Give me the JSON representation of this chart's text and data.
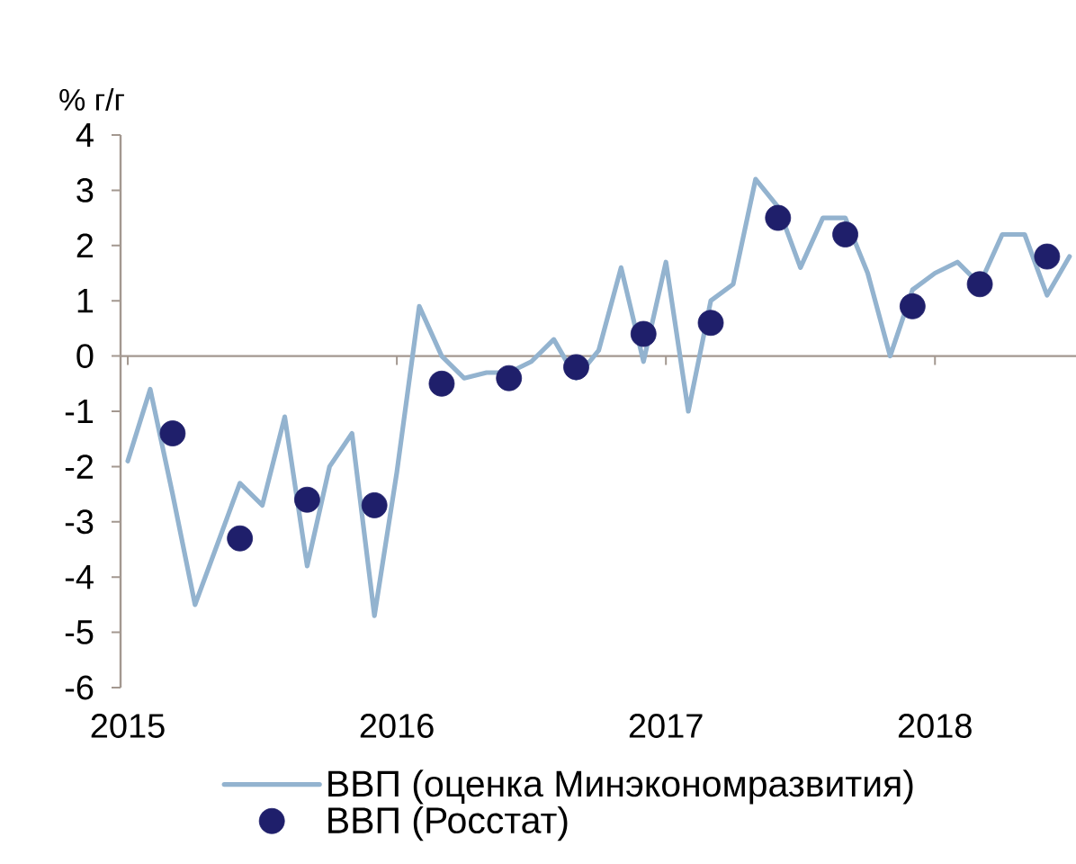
{
  "chart_data": {
    "type": "line",
    "ylabel": "% г/г",
    "xlim": [
      "2014-12-22",
      "2018-07-10"
    ],
    "ylim": [
      -6,
      4
    ],
    "xticks": [
      {
        "value": "2015-01",
        "label": "2015"
      },
      {
        "value": "2016-01",
        "label": "2016"
      },
      {
        "value": "2017-01",
        "label": "2017"
      },
      {
        "value": "2018-01",
        "label": "2018"
      }
    ],
    "yticks": [
      -6,
      -5,
      -4,
      -3,
      -2,
      -1,
      0,
      1,
      2,
      3,
      4
    ],
    "legend": "bottom",
    "series": [
      {
        "name": "ВВП (оценка Минэкономразвития)",
        "type": "line",
        "color": "#93b3cf",
        "x": [
          "2015-01",
          "2015-02",
          "2015-03",
          "2015-04",
          "2015-05",
          "2015-06",
          "2015-07",
          "2015-08",
          "2015-09",
          "2015-10",
          "2015-11",
          "2015-12",
          "2016-01",
          "2016-02",
          "2016-03",
          "2016-04",
          "2016-05",
          "2016-06",
          "2016-07",
          "2016-08",
          "2016-09",
          "2016-10",
          "2016-11",
          "2016-12",
          "2017-01",
          "2017-02",
          "2017-03",
          "2017-04",
          "2017-05",
          "2017-06",
          "2017-07",
          "2017-08",
          "2017-09",
          "2017-10",
          "2017-11",
          "2017-12",
          "2018-01",
          "2018-02",
          "2018-03",
          "2018-04",
          "2018-05",
          "2018-06",
          "2018-07"
        ],
        "values": [
          -1.9,
          -0.6,
          -2.5,
          -4.5,
          -3.4,
          -2.3,
          -2.7,
          -1.1,
          -3.8,
          -2.0,
          -1.4,
          -4.7,
          -2.1,
          0.9,
          0.0,
          -0.4,
          -0.3,
          -0.3,
          -0.1,
          0.3,
          -0.4,
          0.1,
          1.6,
          -0.1,
          1.7,
          -1.0,
          1.0,
          1.3,
          3.2,
          2.7,
          1.6,
          2.5,
          2.5,
          1.5,
          0.0,
          1.2,
          1.5,
          1.7,
          1.3,
          2.2,
          2.2,
          1.1,
          1.8
        ]
      },
      {
        "name": "ВВП (Росстат)",
        "type": "scatter",
        "marker": "circle",
        "color": "#1f1f6b",
        "x": [
          "2015-03",
          "2015-06",
          "2015-09",
          "2015-12",
          "2016-03",
          "2016-06",
          "2016-09",
          "2016-12",
          "2017-03",
          "2017-06",
          "2017-09",
          "2017-12",
          "2018-03",
          "2018-06"
        ],
        "values": [
          -1.4,
          -3.3,
          -2.6,
          -2.7,
          -0.5,
          -0.4,
          -0.2,
          0.4,
          0.6,
          2.5,
          2.2,
          0.9,
          1.3,
          1.8
        ]
      }
    ]
  }
}
